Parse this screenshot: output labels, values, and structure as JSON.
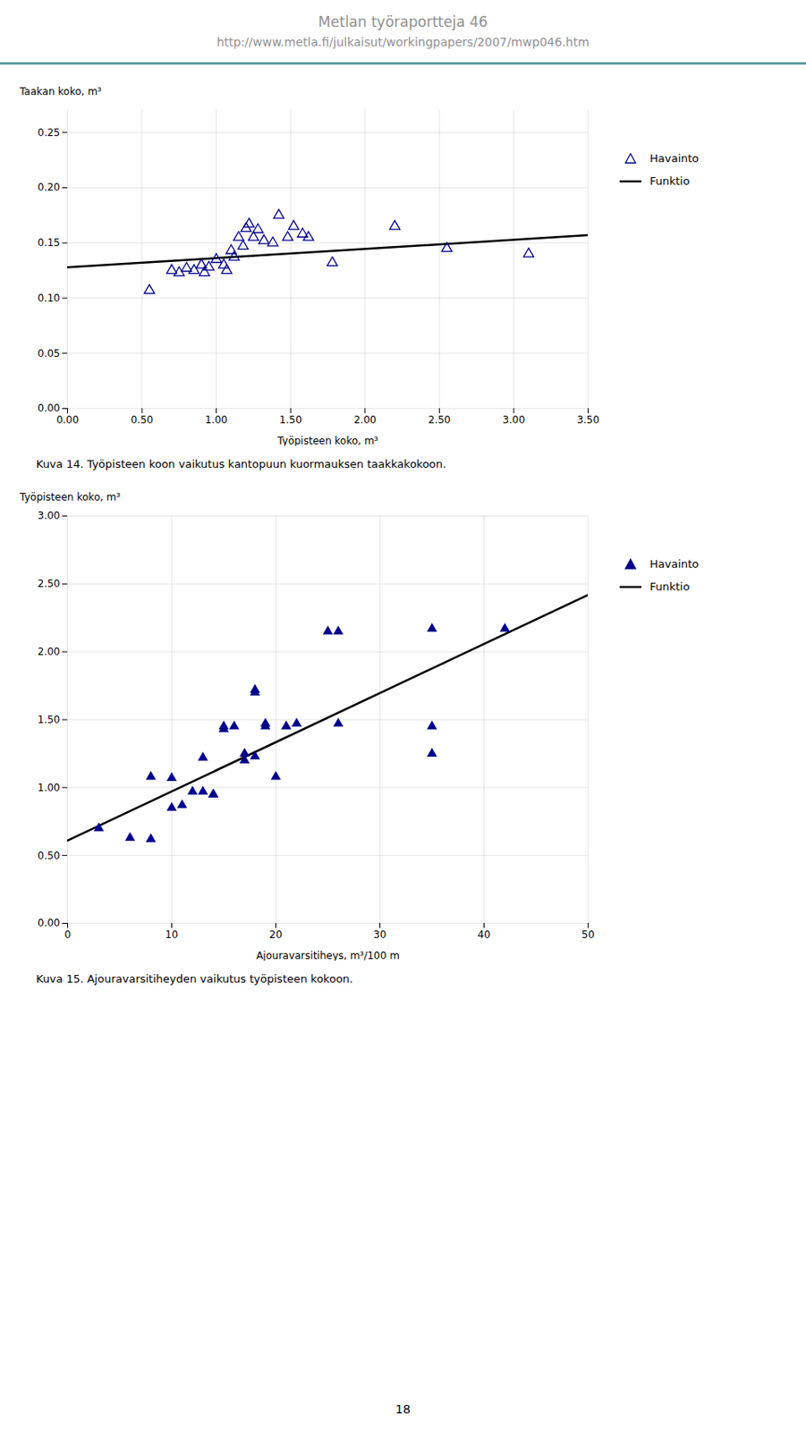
{
  "title": "Metlan työraportteja 46",
  "subtitle": "http://www.metla.fi/julkaisut/workingpapers/2007/mwp046.htm",
  "annotations": [
    "18"
  ],
  "chart_data": [
    {
      "type": "scatter",
      "caption": "Kuva 14. Työpisteen koon vaikutus kantopuun kuormauksen taakkakokoon.",
      "xlabel": "Työpisteen koko, m³",
      "ylabel": "Taakan koko, m³",
      "xlim": [
        0.0,
        3.5
      ],
      "ylim": [
        0.0,
        0.27
      ],
      "xticks": [
        {
          "value": 0.0,
          "label": "0.00"
        },
        {
          "value": 0.5,
          "label": "0.50"
        },
        {
          "value": 1.0,
          "label": "1.00"
        },
        {
          "value": 1.5,
          "label": "1.50"
        },
        {
          "value": 2.0,
          "label": "2.00"
        },
        {
          "value": 2.5,
          "label": "2.50"
        },
        {
          "value": 3.0,
          "label": "3.00"
        },
        {
          "value": 3.5,
          "label": "3.50"
        }
      ],
      "yticks": [
        {
          "value": 0.0,
          "label": "0.00"
        },
        {
          "value": 0.05,
          "label": "0.05"
        },
        {
          "value": 0.1,
          "label": "0.10"
        },
        {
          "value": 0.15,
          "label": "0.15"
        },
        {
          "value": 0.2,
          "label": "0.20"
        },
        {
          "value": 0.25,
          "label": "0.25"
        }
      ],
      "grid": true,
      "legend": "right",
      "series": [
        {
          "name": "Havainto",
          "type": "scatter",
          "marker": "triangle-open",
          "color": "#00008B",
          "x": [
            0.55,
            0.7,
            0.75,
            0.8,
            0.85,
            0.9,
            0.92,
            0.95,
            1.0,
            1.05,
            1.07,
            1.1,
            1.12,
            1.15,
            1.18,
            1.2,
            1.22,
            1.25,
            1.28,
            1.32,
            1.38,
            1.42,
            1.48,
            1.52,
            1.58,
            1.62,
            1.78,
            2.2,
            2.55,
            3.1
          ],
          "values": [
            0.107,
            0.125,
            0.123,
            0.127,
            0.125,
            0.13,
            0.123,
            0.128,
            0.135,
            0.13,
            0.125,
            0.143,
            0.137,
            0.155,
            0.147,
            0.163,
            0.167,
            0.155,
            0.162,
            0.152,
            0.15,
            0.175,
            0.155,
            0.165,
            0.158,
            0.155,
            0.132,
            0.165,
            0.145,
            0.14
          ]
        },
        {
          "name": "Funktio",
          "type": "line",
          "line_style": "solid",
          "color": "#000000",
          "x": [
            0.0,
            3.5
          ],
          "values": [
            0.128,
            0.157
          ]
        }
      ]
    },
    {
      "type": "scatter",
      "caption": "Kuva 15. Ajouravarsitiheyden vaikutus työpisteen kokoon.",
      "xlabel": "Ajouravarsitiheys, m³/100 m",
      "ylabel": "Työpisteen koko, m³",
      "xlim": [
        0,
        50
      ],
      "ylim": [
        0.0,
        3.0
      ],
      "xticks": [
        0,
        10,
        20,
        30,
        40,
        50
      ],
      "yticks": [
        {
          "value": 0.0,
          "label": "0.00"
        },
        {
          "value": 0.5,
          "label": "0.50"
        },
        {
          "value": 1.0,
          "label": "1.00"
        },
        {
          "value": 1.5,
          "label": "1.50"
        },
        {
          "value": 2.0,
          "label": "2.00"
        },
        {
          "value": 2.5,
          "label": "2.50"
        },
        {
          "value": 3.0,
          "label": "3.00"
        }
      ],
      "grid": true,
      "legend": "right",
      "series": [
        {
          "name": "Havainto",
          "type": "scatter",
          "marker": "triangle",
          "color": "#00008B",
          "x": [
            3,
            6,
            8,
            8,
            10,
            10,
            11,
            12,
            13,
            13,
            14,
            14,
            15,
            15,
            16,
            17,
            17,
            18,
            18,
            18,
            19,
            19,
            20,
            21,
            22,
            25,
            26,
            26,
            35,
            35,
            35,
            42
          ],
          "values": [
            0.7,
            0.63,
            0.62,
            1.08,
            1.07,
            0.85,
            0.87,
            0.97,
            0.97,
            1.22,
            0.95,
            0.95,
            1.43,
            1.45,
            1.45,
            1.2,
            1.25,
            1.7,
            1.72,
            1.23,
            1.45,
            1.47,
            1.08,
            1.45,
            1.47,
            2.15,
            2.15,
            1.47,
            1.45,
            1.25,
            2.17,
            2.17
          ]
        },
        {
          "name": "Funktio",
          "type": "line",
          "line_style": "solid",
          "color": "#000000",
          "x": [
            0,
            50
          ],
          "values": [
            0.61,
            2.42
          ]
        }
      ]
    }
  ]
}
